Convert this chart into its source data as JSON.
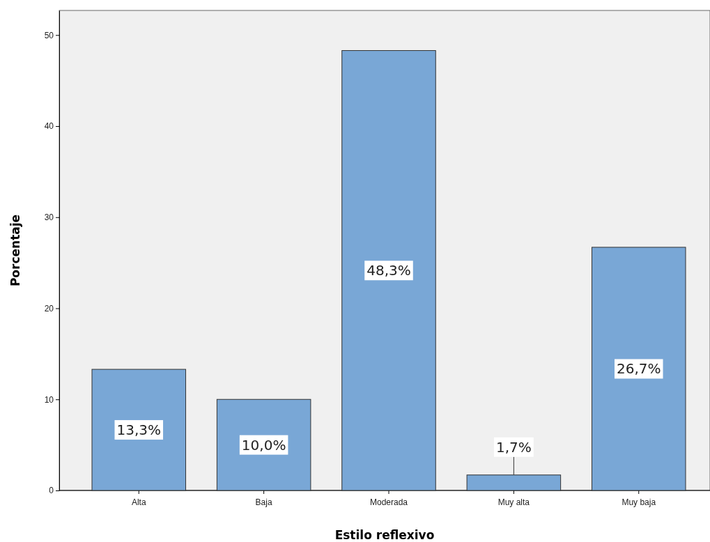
{
  "chart_data": {
    "type": "bar",
    "xlabel": "Estilo reflexivo",
    "ylabel": "Porcentaje",
    "categories": [
      "Alta",
      "Baja",
      "Moderada",
      "Muy alta",
      "Muy baja"
    ],
    "values": [
      13.3,
      10.0,
      48.3,
      1.7,
      26.7
    ],
    "value_labels": [
      "13,3%",
      "10,0%",
      "48,3%",
      "1,7%",
      "26,7%"
    ],
    "color": "#79a7d6",
    "ylim": [
      0,
      52.7
    ],
    "yticks": [
      0,
      10,
      20,
      30,
      40,
      50
    ],
    "grid": false
  }
}
